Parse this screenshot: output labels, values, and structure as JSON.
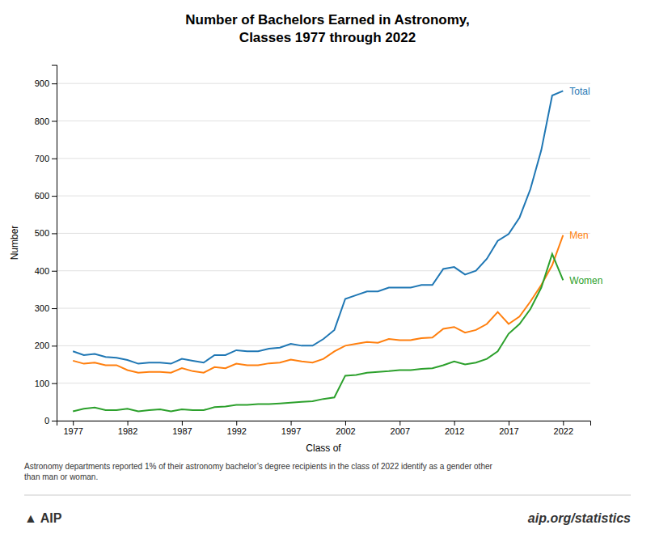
{
  "chart_data": {
    "type": "line",
    "title": "Number of Bachelors Earned in Astronomy,\nClasses 1977 through 2022",
    "xlabel": "Class of",
    "ylabel": "Number",
    "x": [
      1977,
      1978,
      1979,
      1980,
      1981,
      1982,
      1983,
      1984,
      1985,
      1986,
      1987,
      1988,
      1989,
      1990,
      1991,
      1992,
      1993,
      1994,
      1995,
      1996,
      1997,
      1998,
      1999,
      2000,
      2001,
      2002,
      2003,
      2004,
      2005,
      2006,
      2007,
      2008,
      2009,
      2010,
      2011,
      2012,
      2013,
      2014,
      2015,
      2016,
      2017,
      2018,
      2019,
      2020,
      2021,
      2022
    ],
    "series": [
      {
        "name": "Total",
        "values": [
          185,
          175,
          178,
          170,
          168,
          162,
          152,
          155,
          155,
          152,
          165,
          160,
          155,
          175,
          175,
          188,
          185,
          185,
          192,
          195,
          205,
          200,
          200,
          218,
          242,
          325,
          335,
          345,
          345,
          355,
          355,
          355,
          362,
          362,
          405,
          410,
          390,
          400,
          432,
          480,
          498,
          542,
          618,
          722,
          868,
          880
        ]
      },
      {
        "name": "Men",
        "values": [
          160,
          152,
          155,
          148,
          148,
          135,
          128,
          130,
          130,
          128,
          140,
          132,
          128,
          143,
          140,
          152,
          148,
          148,
          153,
          155,
          163,
          158,
          155,
          165,
          185,
          200,
          205,
          210,
          208,
          218,
          215,
          215,
          220,
          222,
          245,
          250,
          235,
          242,
          258,
          290,
          258,
          278,
          318,
          362,
          415,
          495
        ]
      },
      {
        "name": "Women",
        "values": [
          25,
          32,
          35,
          28,
          28,
          32,
          25,
          28,
          30,
          25,
          30,
          28,
          28,
          36,
          38,
          42,
          42,
          44,
          44,
          46,
          48,
          50,
          52,
          58,
          62,
          120,
          122,
          128,
          130,
          132,
          135,
          135,
          138,
          140,
          148,
          158,
          150,
          155,
          165,
          185,
          232,
          258,
          298,
          355,
          445,
          375
        ]
      }
    ],
    "xlim": [
      1975.5,
      2024.5
    ],
    "xticks": [
      1977,
      1982,
      1987,
      1992,
      1997,
      2002,
      2007,
      2012,
      2017,
      2022
    ],
    "ylim": [
      0,
      950
    ],
    "yticks": [
      0,
      100,
      200,
      300,
      400,
      500,
      600,
      700,
      800,
      900
    ],
    "grid": true,
    "annotations": [
      {
        "text": "Astronomy departments reported 1% of their astronomy bachelor’s degree recipients in the class of 2022 identify as a gender other\nthan man or woman."
      },
      {
        "text": "▲ AIP"
      },
      {
        "text": "aip.org/statistics"
      }
    ]
  }
}
